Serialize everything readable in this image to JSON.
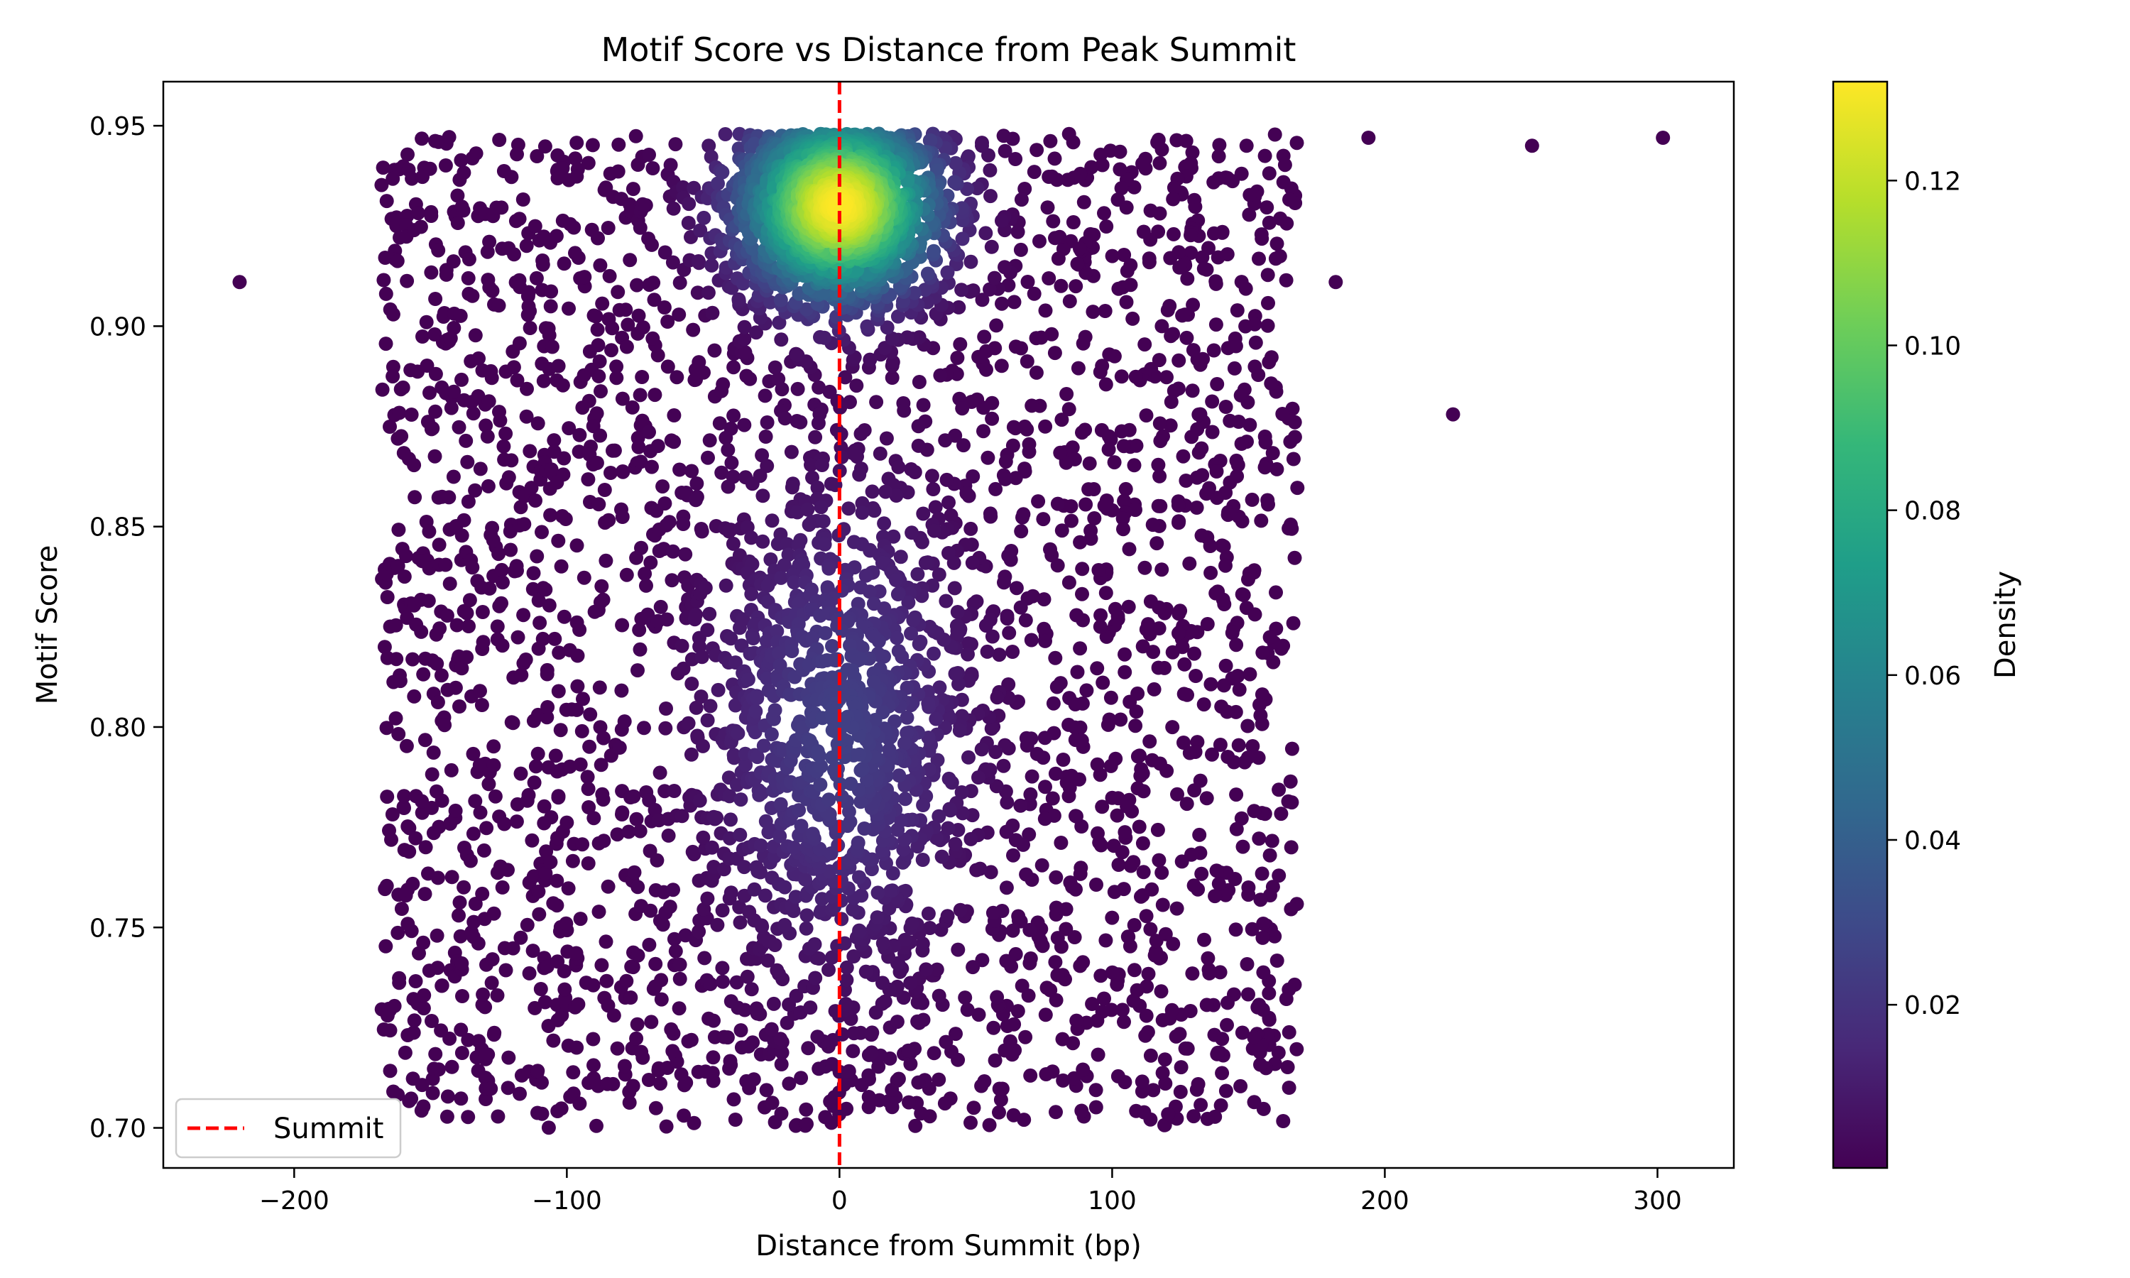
{
  "chart_data": {
    "type": "scatter",
    "title": "Motif Score vs Distance from Peak Summit",
    "xlabel": "Distance from Summit (bp)",
    "ylabel": "Motif Score",
    "xlim": [
      -248,
      328
    ],
    "ylim": [
      0.69,
      0.961
    ],
    "x_ticks": [
      -200,
      -100,
      0,
      100,
      200,
      300
    ],
    "x_tick_labels": [
      "−200",
      "−100",
      "0",
      "100",
      "200",
      "300"
    ],
    "y_ticks": [
      0.7,
      0.75,
      0.8,
      0.85,
      0.9,
      0.95
    ],
    "y_tick_labels": [
      "0.70",
      "0.75",
      "0.80",
      "0.85",
      "0.90",
      "0.95"
    ],
    "grid": false,
    "legend": {
      "placement": "lower-left",
      "entries": [
        {
          "label": "Summit",
          "style": "dashed-line",
          "color": "#ff0000"
        }
      ]
    },
    "reference_line": {
      "orientation": "vertical",
      "x": 0,
      "label": "Summit",
      "color": "#ff0000",
      "style": "dashed"
    },
    "colorbar": {
      "label": "Density",
      "colormap": "viridis",
      "range": [
        0.0002,
        0.132
      ],
      "ticks": [
        0.02,
        0.04,
        0.06,
        0.08,
        0.1,
        0.12
      ],
      "tick_labels": [
        "0.02",
        "0.04",
        "0.06",
        "0.08",
        "0.10",
        "0.12"
      ]
    },
    "series": [
      {
        "point_count": 5000,
        "color_by": "density",
        "uniform_background": {
          "x_range": [
            -168,
            168
          ],
          "y_range": [
            0.7,
            0.948
          ]
        },
        "clusters": [
          {
            "center": [
              0,
              0.93
            ],
            "spread_x": 18,
            "spread_y": 0.012,
            "peak_density": 0.132
          },
          {
            "center": [
              0,
              0.8
            ],
            "spread_x": 25,
            "spread_y": 0.03,
            "peak_density": 0.025
          }
        ],
        "outliers": [
          {
            "x": -220,
            "y": 0.911
          },
          {
            "x": 182,
            "y": 0.911
          },
          {
            "x": 194,
            "y": 0.947
          },
          {
            "x": 225,
            "y": 0.878
          },
          {
            "x": 254,
            "y": 0.945
          },
          {
            "x": 302,
            "y": 0.947
          }
        ]
      }
    ]
  }
}
